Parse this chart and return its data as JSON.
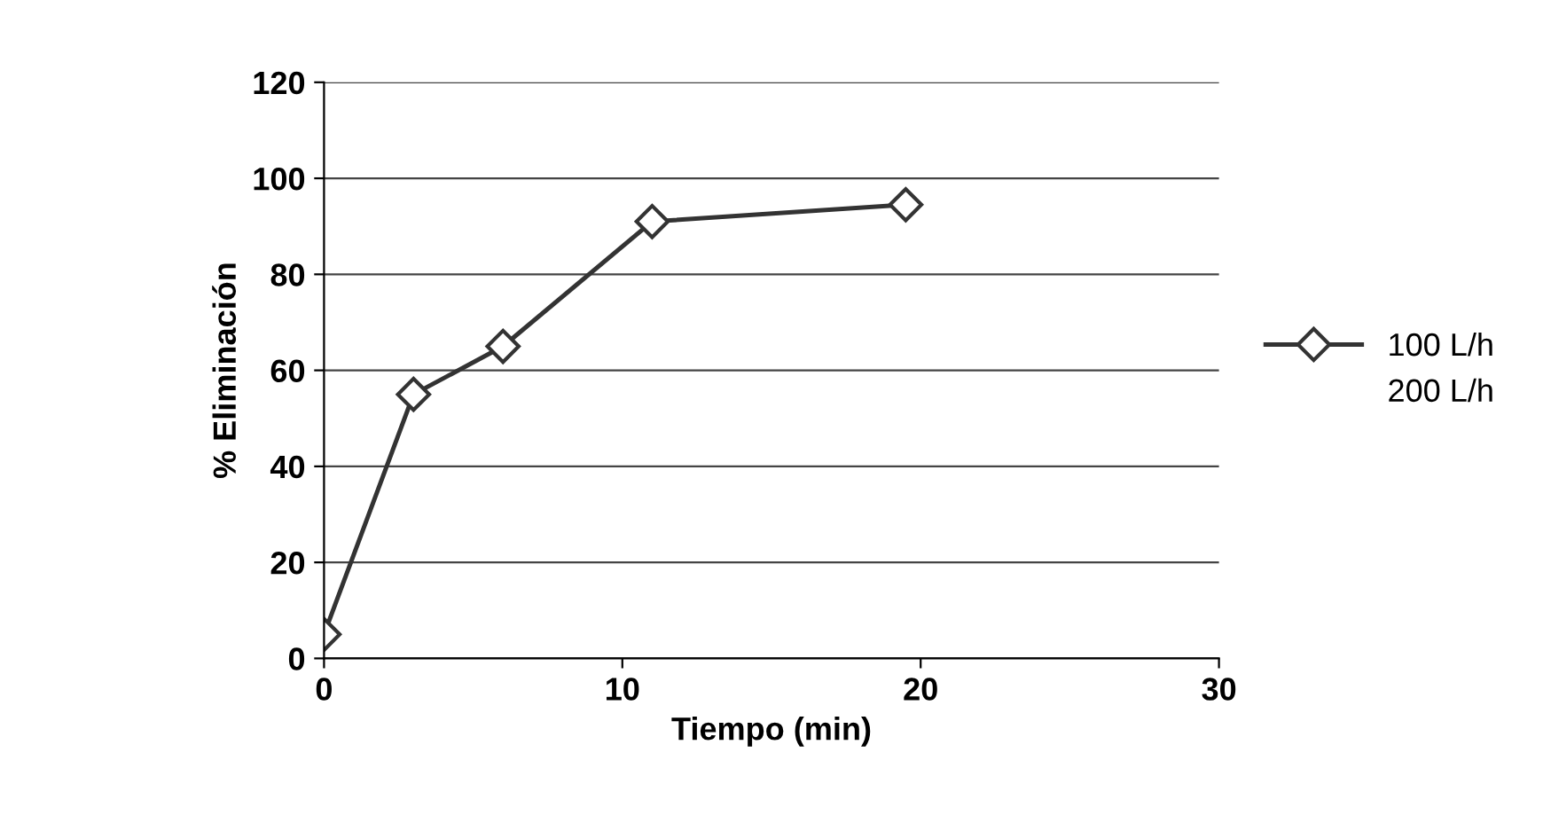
{
  "chart_data": {
    "type": "line",
    "xlabel": "Tiempo (min)",
    "ylabel": "% Eliminación",
    "x": [
      0,
      3,
      6,
      11,
      19.5
    ],
    "series": [
      {
        "name": "100 L/h",
        "color": "#333333",
        "values": [
          5,
          55,
          65,
          91,
          94.5
        ],
        "marker": "diamond"
      },
      {
        "name": "200 L/h",
        "values": [
          null,
          null,
          null,
          null,
          null
        ],
        "marker": "none"
      }
    ],
    "xlim": [
      0,
      30
    ],
    "xticks": [
      0,
      10,
      20,
      30
    ],
    "ylim": [
      0,
      120
    ],
    "yticks": [
      0,
      20,
      40,
      60,
      80,
      100,
      120
    ],
    "grid": "y",
    "legend": "right",
    "line_style": "solid"
  }
}
